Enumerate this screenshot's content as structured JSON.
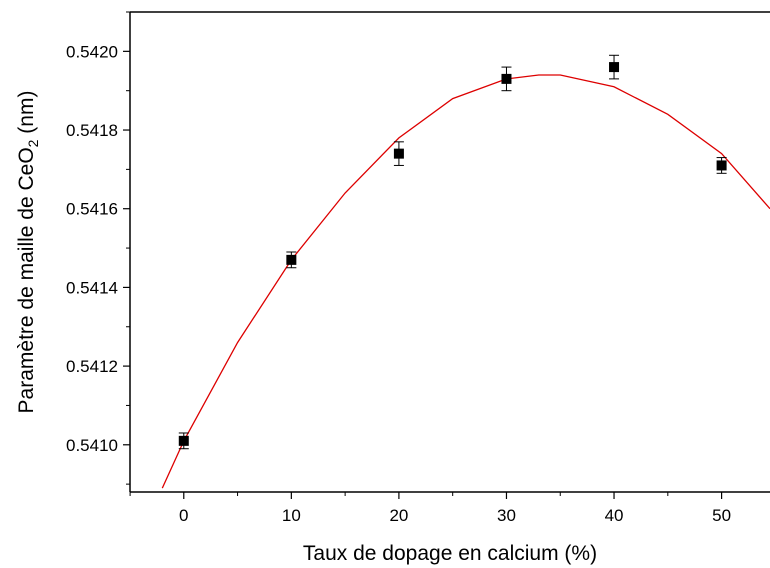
{
  "chart_data": {
    "type": "scatter",
    "xlabel": "Taux de dopage en calcium (%)",
    "ylabel": {
      "main": "Paramètre de maille de CeO",
      "subscript": "2",
      "suffix": " (nm)"
    },
    "xlim": [
      -5,
      54.5
    ],
    "ylim": [
      0.54088,
      0.5421
    ],
    "x_ticks": [
      0,
      10,
      20,
      30,
      40,
      50
    ],
    "x_tick_labels": [
      "0",
      "10",
      "20",
      "30",
      "40",
      "50"
    ],
    "y_ticks": [
      0.541,
      0.5412,
      0.5414,
      0.5416,
      0.5418,
      0.542
    ],
    "y_tick_labels": [
      "0.5410",
      "0.5412",
      "0.5414",
      "0.5416",
      "0.5418",
      "0.5420"
    ],
    "grid": false,
    "series": [
      {
        "kind": "points",
        "marker": "square",
        "color": "#000000",
        "points": [
          {
            "x": 0,
            "y": 0.54101,
            "err": 2e-05
          },
          {
            "x": 10,
            "y": 0.54147,
            "err": 2e-05
          },
          {
            "x": 20,
            "y": 0.54174,
            "err": 3e-05
          },
          {
            "x": 30,
            "y": 0.54193,
            "err": 3e-05
          },
          {
            "x": 40,
            "y": 0.54196,
            "err": 3e-05
          },
          {
            "x": 50,
            "y": 0.54171,
            "err": 2e-05
          }
        ]
      },
      {
        "kind": "fit",
        "color": "#dd0000",
        "x": [
          -2,
          0,
          5,
          10,
          15,
          20,
          25,
          30,
          33,
          35,
          40,
          45,
          50,
          54.5
        ],
        "y": [
          0.54089,
          0.54101,
          0.54126,
          0.54147,
          0.54164,
          0.54178,
          0.54188,
          0.54193,
          0.54194,
          0.54194,
          0.54191,
          0.54184,
          0.54174,
          0.5416
        ]
      }
    ]
  }
}
